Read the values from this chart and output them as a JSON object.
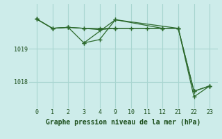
{
  "bg_color": "#cdecea",
  "grid_color": "#a8d5d0",
  "line_color": "#2d6a2d",
  "title": "Graphe pression niveau de la mer (hPa)",
  "title_color": "#1a4d1a",
  "xlim": [
    -0.5,
    11.5
  ],
  "ylim": [
    1017.2,
    1020.35
  ],
  "xtick_labels": [
    "0",
    "1",
    "2",
    "3",
    "4",
    "9",
    "10",
    "11",
    "12",
    "21",
    "22",
    "23"
  ],
  "ytick_vals": [
    1018.0,
    1019.0
  ],
  "ytick_labels": [
    "1018",
    "1019"
  ],
  "lines": [
    {
      "xi": [
        0,
        1,
        2,
        3,
        4,
        5,
        6,
        7,
        8
      ],
      "y": [
        1019.9,
        1019.62,
        1019.65,
        1019.62,
        1019.58,
        1019.62,
        1019.62,
        1019.62,
        1019.62
      ]
    },
    {
      "xi": [
        0,
        1,
        2,
        3,
        4,
        5,
        8,
        9,
        10,
        11
      ],
      "y": [
        1019.9,
        1019.62,
        1019.65,
        1019.18,
        1019.28,
        1019.88,
        1019.62,
        1019.62,
        1017.72,
        1017.88
      ]
    },
    {
      "xi": [
        0,
        1,
        2,
        3,
        4,
        5,
        8,
        9,
        10,
        11
      ],
      "y": [
        1019.9,
        1019.62,
        1019.65,
        1019.62,
        1019.62,
        1019.62,
        1019.62,
        1019.62,
        1017.72,
        1017.88
      ]
    },
    {
      "xi": [
        3,
        5,
        9,
        10,
        11
      ],
      "y": [
        1019.18,
        1019.88,
        1019.62,
        1017.55,
        1017.88
      ]
    }
  ]
}
